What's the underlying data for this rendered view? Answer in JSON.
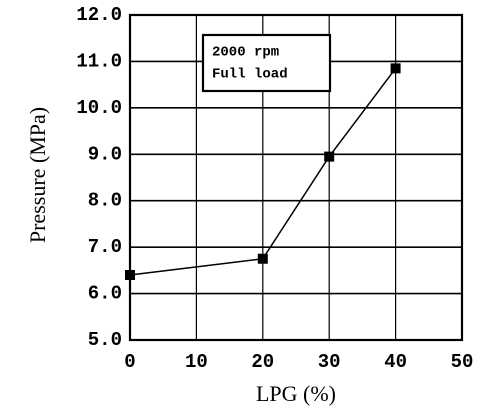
{
  "chart_data": {
    "type": "line",
    "x_label": "LPG (%)",
    "y_label": "Pressure (MPa)",
    "annotations": [
      "2000 rpm",
      "Full load"
    ],
    "series": [
      {
        "color": "#000000",
        "x": [
          0,
          20,
          30,
          40
        ],
        "values": [
          6.4,
          6.75,
          8.95,
          10.85
        ]
      }
    ],
    "xlim": [
      0,
      50
    ],
    "xticks": [
      0,
      10,
      20,
      30,
      40,
      50
    ],
    "ylim": [
      5,
      12
    ],
    "yticks": [
      {
        "value": 5,
        "label": "5.0"
      },
      {
        "value": 6,
        "label": "6.0"
      },
      {
        "value": 7,
        "label": "7.0"
      },
      {
        "value": 8,
        "label": "8.0"
      },
      {
        "value": 9,
        "label": "9.0"
      },
      {
        "value": 10,
        "label": "10.0"
      },
      {
        "value": 11,
        "label": "11.0"
      },
      {
        "value": 12,
        "label": "12.0"
      }
    ],
    "grid": true
  }
}
